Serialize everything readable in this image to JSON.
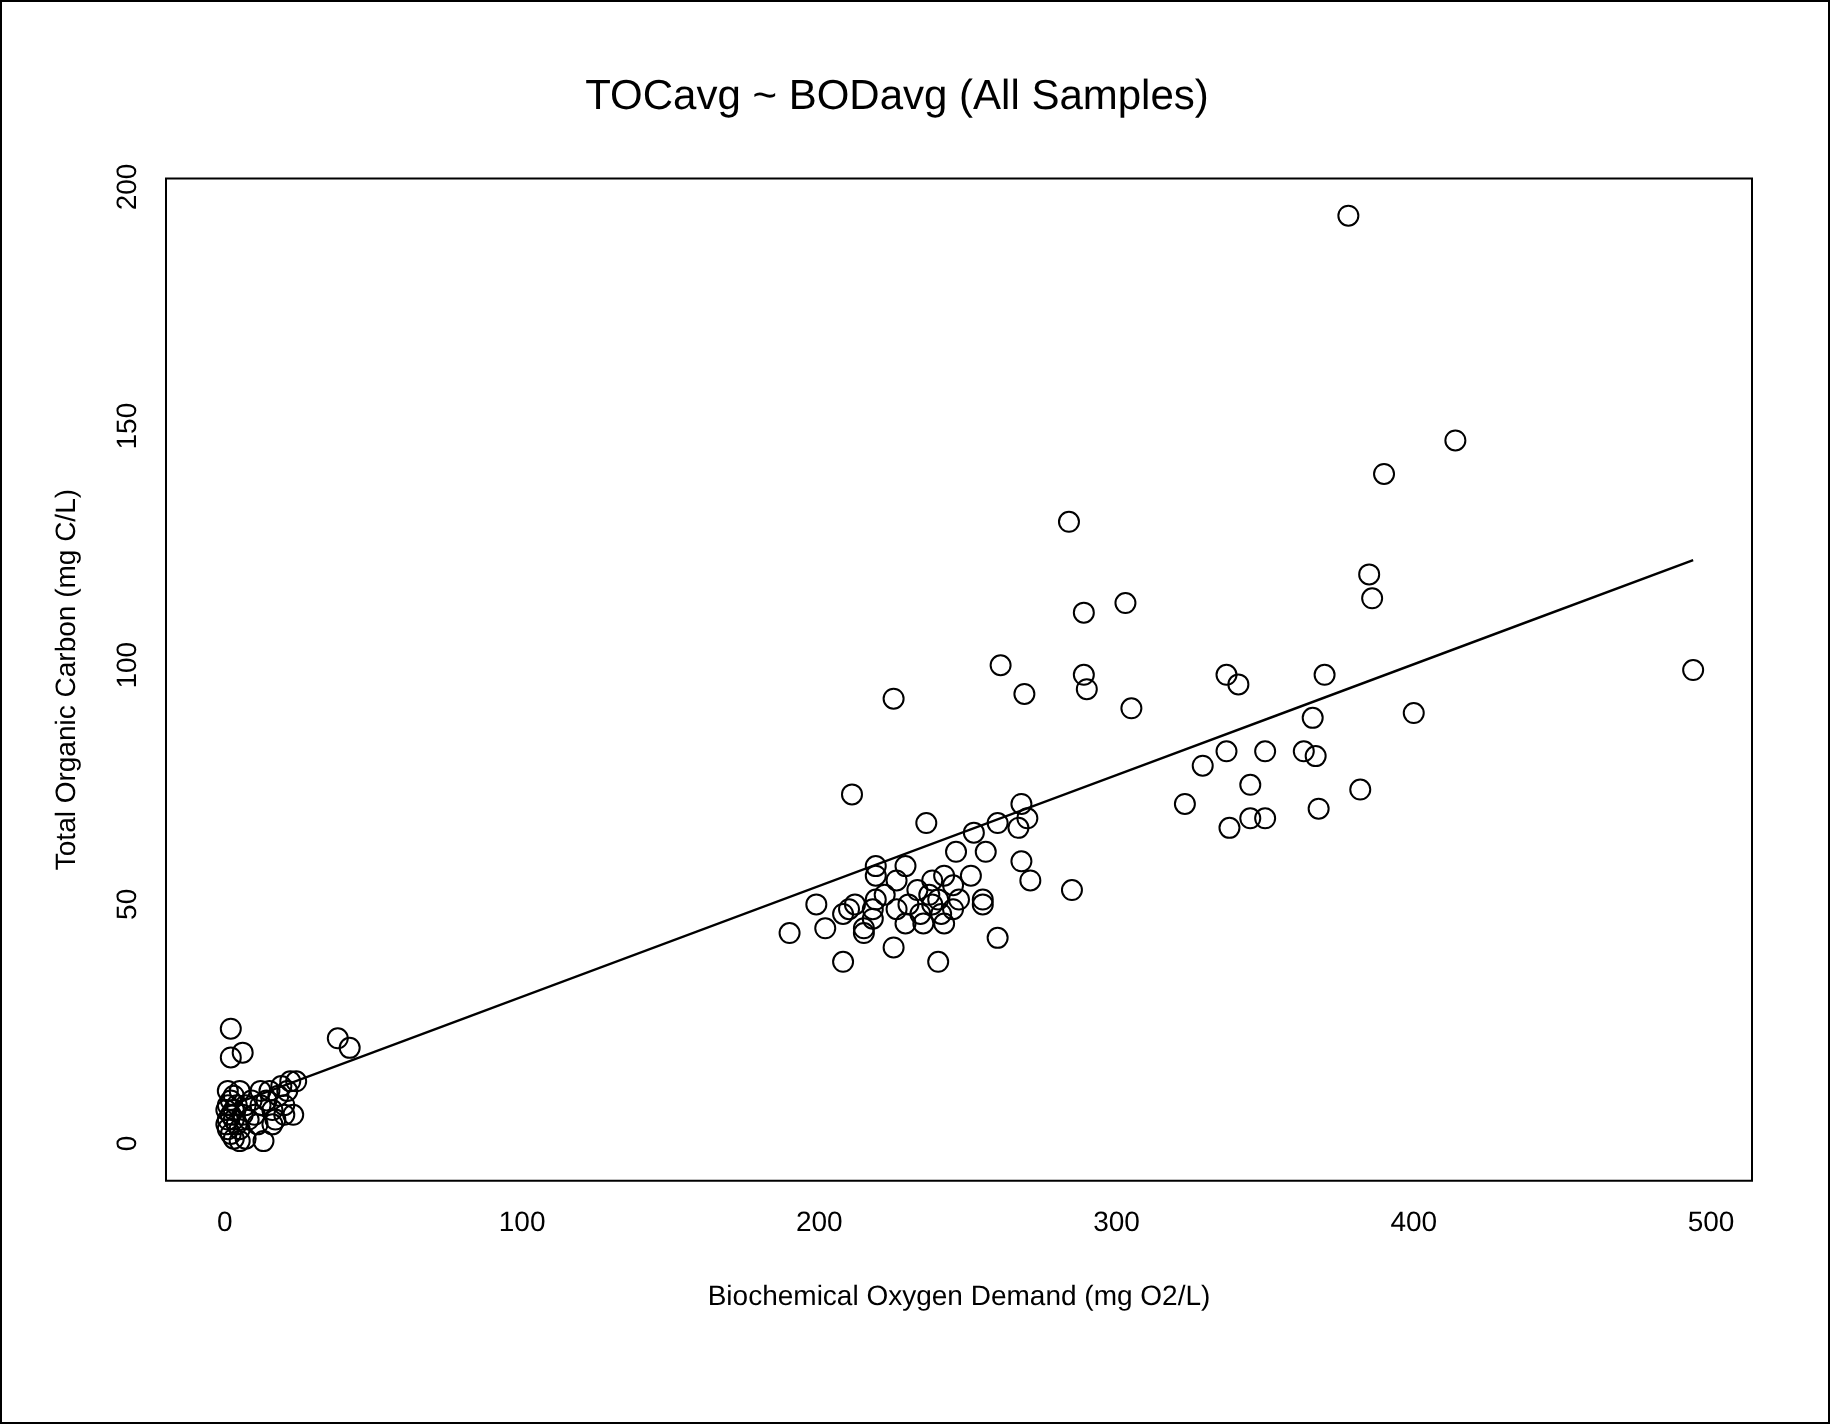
{
  "chart_data": {
    "type": "scatter",
    "title": "TOCavg ~ BODavg (All Samples)",
    "xlabel": "Biochemical Oxygen Demand (mg O2/L)",
    "ylabel": "Total Organic Carbon (mg C/L)",
    "xlim": [
      -19.8,
      513.8
    ],
    "ylim": [
      -7.8,
      201.8
    ],
    "xticks": [
      0,
      100,
      200,
      300,
      400,
      500
    ],
    "yticks": [
      0,
      50,
      100,
      150,
      200
    ],
    "grid": false,
    "legend": false,
    "marker": "circle",
    "series": [
      {
        "type": "scatter",
        "color": "#000000",
        "x": [
          378,
          414,
          390,
          284,
          385,
          386,
          289,
          303,
          261,
          494,
          289,
          337,
          370,
          341,
          290,
          269,
          225,
          305,
          400,
          366,
          363,
          337,
          350,
          367,
          329,
          345,
          382,
          211,
          323,
          268,
          368,
          270,
          345,
          350,
          338,
          236,
          267,
          260,
          252,
          246,
          256,
          268,
          219,
          229,
          219,
          242,
          238,
          251,
          226,
          245,
          233,
          255,
          271,
          285,
          222,
          237,
          240,
          219,
          247,
          238,
          230,
          212,
          199,
          245,
          218,
          210,
          255,
          226,
          234,
          208,
          218,
          241,
          235,
          242,
          202,
          215,
          229,
          190,
          215,
          260,
          225,
          208,
          240,
          2,
          2,
          6,
          38,
          42,
          1,
          2,
          3,
          1,
          2,
          3,
          4,
          5,
          2,
          3,
          5,
          7,
          13,
          8,
          10,
          12,
          14,
          16,
          18,
          20,
          22,
          24,
          20,
          23,
          16,
          11,
          6,
          9,
          5,
          1,
          4,
          15,
          19,
          12,
          17,
          7,
          0.5,
          0.5,
          1,
          21,
          3
        ],
        "values": [
          194,
          147,
          140,
          130,
          119,
          114,
          111,
          113,
          100,
          99,
          98,
          98,
          98,
          96,
          95,
          94,
          93,
          91,
          90,
          89,
          82,
          82,
          82,
          81,
          79,
          75,
          74,
          73,
          71,
          71,
          70,
          68,
          68,
          68,
          66,
          67,
          66,
          67,
          65,
          61,
          61,
          59,
          58,
          58,
          56,
          56,
          55,
          56,
          55,
          54,
          53,
          51,
          55,
          53,
          52,
          52,
          51,
          51,
          51,
          50,
          50,
          50,
          50,
          49,
          49,
          49,
          50,
          49,
          48,
          48,
          47,
          48,
          46,
          46,
          45,
          45,
          46,
          44,
          44,
          43,
          41,
          38,
          38,
          24,
          18,
          19,
          22,
          20,
          5,
          6,
          7,
          8,
          9,
          10,
          4,
          3,
          2,
          1,
          0.5,
          1,
          0.5,
          5,
          6,
          8,
          9,
          7,
          10,
          8,
          13,
          13,
          6,
          6,
          4,
          4,
          6,
          9,
          11,
          11,
          8,
          11,
          12,
          11,
          5,
          8,
          4,
          7,
          3,
          11,
          5
        ]
      },
      {
        "type": "line",
        "color": "#000000",
        "marker": "none",
        "line_style": "solid",
        "x": [
          0,
          494
        ],
        "values": [
          7.5,
          122
        ]
      }
    ]
  }
}
